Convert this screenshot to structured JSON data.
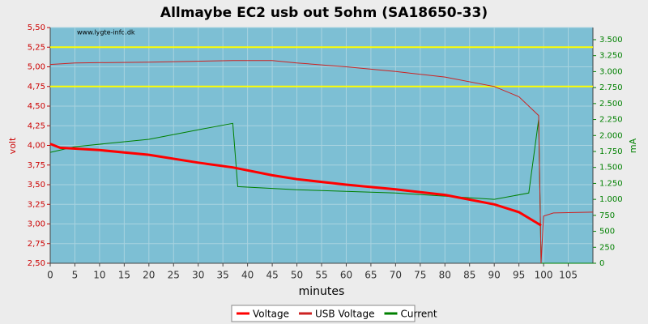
{
  "chart_data": {
    "type": "line",
    "title": "Allmaybe EC2 usb out 5ohm (SA18650-33)",
    "watermark": "www.lygte-info.dk",
    "xlabel": "minutes",
    "ylabel": "volt",
    "y2label": "mA",
    "xlim": [
      0,
      110
    ],
    "xticks": [
      0,
      5,
      10,
      15,
      20,
      25,
      30,
      35,
      40,
      45,
      50,
      55,
      60,
      65,
      70,
      75,
      80,
      85,
      90,
      95,
      100,
      105
    ],
    "ylim": [
      2.5,
      5.5
    ],
    "yticks": [
      {
        "value": 2.5,
        "label": "2,50"
      },
      {
        "value": 2.75,
        "label": "2,75"
      },
      {
        "value": 3,
        "label": "3,00"
      },
      {
        "value": 3.25,
        "label": "3,25"
      },
      {
        "value": 3.5,
        "label": "3,50"
      },
      {
        "value": 3.75,
        "label": "3,75"
      },
      {
        "value": 4,
        "label": "4,00"
      },
      {
        "value": 4.25,
        "label": "4,25"
      },
      {
        "value": 4.5,
        "label": "4,50"
      },
      {
        "value": 4.75,
        "label": "4,75"
      },
      {
        "value": 5,
        "label": "5,00"
      },
      {
        "value": 5.25,
        "label": "5,25"
      },
      {
        "value": 5.5,
        "label": "5,50"
      }
    ],
    "y2lim": [
      0,
      3690
    ],
    "y2ticks": [
      0,
      250,
      500,
      750,
      {
        "value": 1000,
        "label": "1.000"
      },
      {
        "value": 1250,
        "label": "1.250"
      },
      {
        "value": 1500,
        "label": "1.500"
      },
      {
        "value": 1750,
        "label": "1.750"
      },
      {
        "value": 2000,
        "label": "2.000"
      },
      {
        "value": 2250,
        "label": "2.250"
      },
      {
        "value": 2500,
        "label": "2.500"
      },
      {
        "value": 2750,
        "label": "2.750"
      },
      {
        "value": 3000,
        "label": "3.000"
      },
      {
        "value": 3250,
        "label": "3.250"
      },
      {
        "value": 3500,
        "label": "3.500"
      }
    ],
    "grid": true,
    "reference_lines": [
      {
        "value": 5.25,
        "color": "#ffff00"
      },
      {
        "value": 4.75,
        "color": "#ffff00"
      }
    ],
    "series": [
      {
        "name": "Voltage",
        "color": "#ff0000",
        "width": 3,
        "x": [
          0,
          2,
          10,
          20,
          30,
          37,
          45,
          50,
          60,
          70,
          80,
          90,
          95,
          99,
          99.5
        ],
        "values": [
          4.02,
          3.97,
          3.94,
          3.88,
          3.78,
          3.72,
          3.62,
          3.57,
          3.5,
          3.44,
          3.37,
          3.25,
          3.15,
          3.0,
          2.98
        ]
      },
      {
        "name": "USB Voltage",
        "color": "#cc2222",
        "width": 1,
        "x": [
          0,
          5,
          20,
          37,
          45,
          50,
          60,
          70,
          80,
          90,
          95,
          99,
          99.5,
          100,
          102,
          110
        ],
        "values": [
          5.03,
          5.05,
          5.06,
          5.08,
          5.08,
          5.05,
          5.0,
          4.94,
          4.87,
          4.75,
          4.62,
          4.38,
          2.5,
          3.1,
          3.14,
          3.15
        ]
      },
      {
        "name": "Current",
        "color": "#008000",
        "width": 1,
        "axis": "y2",
        "x": [
          0,
          5,
          20,
          30,
          37,
          38,
          50,
          70,
          90,
          97,
          99,
          99.5,
          110
        ],
        "values": [
          1736,
          1825,
          1940,
          2090,
          2190,
          1200,
          1150,
          1100,
          1000,
          1100,
          2250,
          0,
          0
        ]
      }
    ]
  }
}
